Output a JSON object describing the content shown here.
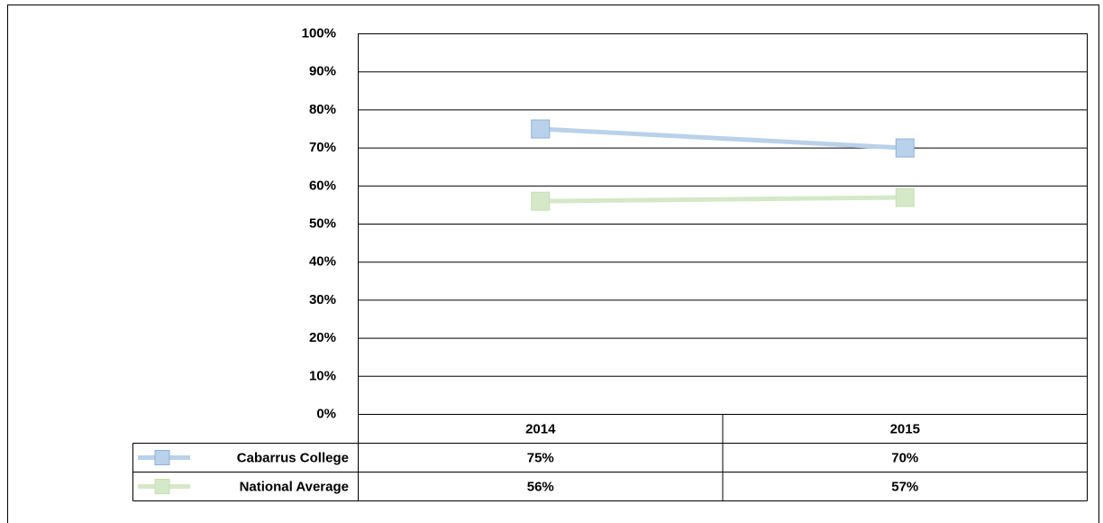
{
  "chart_data": {
    "type": "line",
    "categories": [
      "2014",
      "2015"
    ],
    "series": [
      {
        "name": "Cabarrus College",
        "color": "#b9d1ea",
        "edge_color": "#8eb1d9",
        "values": [
          75,
          70
        ],
        "value_labels": [
          "75%",
          "70%"
        ]
      },
      {
        "name": "National Average",
        "color": "#d5e8c8",
        "edge_color": "#c3dfb0",
        "values": [
          56,
          57
        ],
        "value_labels": [
          "56%",
          "57%"
        ]
      }
    ],
    "ylim": [
      0,
      100
    ],
    "yticks": [
      {
        "value": 0,
        "label": "0%"
      },
      {
        "value": 10,
        "label": "10%"
      },
      {
        "value": 20,
        "label": "20%"
      },
      {
        "value": 30,
        "label": "30%"
      },
      {
        "value": 40,
        "label": "40%"
      },
      {
        "value": 50,
        "label": "50%"
      },
      {
        "value": 60,
        "label": "60%"
      },
      {
        "value": 70,
        "label": "70%"
      },
      {
        "value": 80,
        "label": "80%"
      },
      {
        "value": 90,
        "label": "90%"
      },
      {
        "value": 100,
        "label": "100%"
      }
    ],
    "grid": true,
    "data_table": true
  }
}
